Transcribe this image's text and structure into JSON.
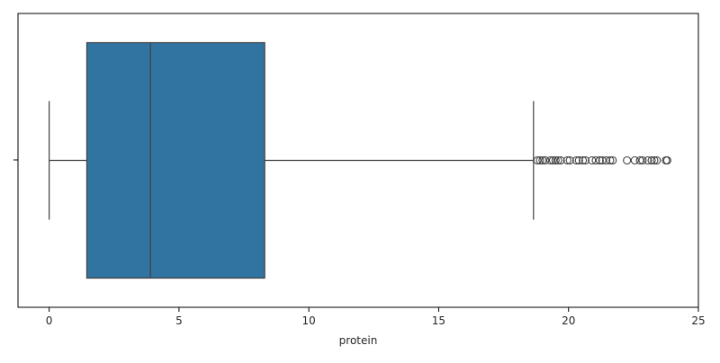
{
  "chart_data": {
    "type": "box",
    "orientation": "horizontal",
    "xlabel": "protein",
    "xlim": [
      -1.2,
      25
    ],
    "xticks": [
      0,
      5,
      10,
      15,
      20,
      25
    ],
    "xtick_labels": [
      "0",
      "5",
      "10",
      "15",
      "20",
      "25"
    ],
    "grid": false,
    "box_color": "#3274a1",
    "line_color": "#3f3f3f",
    "stats": {
      "whisker_low": 0.0,
      "q1": 1.45,
      "median": 3.9,
      "q3": 8.3,
      "whisker_high": 18.65
    },
    "outliers": [
      18.8,
      18.9,
      19.0,
      19.1,
      19.3,
      19.4,
      19.5,
      19.6,
      19.7,
      19.95,
      20.05,
      20.3,
      20.4,
      20.55,
      20.65,
      20.9,
      21.05,
      21.2,
      21.3,
      21.45,
      21.6,
      21.7,
      22.25,
      22.55,
      22.75,
      22.85,
      23.05,
      23.2,
      23.3,
      23.4,
      23.75,
      23.8
    ]
  }
}
